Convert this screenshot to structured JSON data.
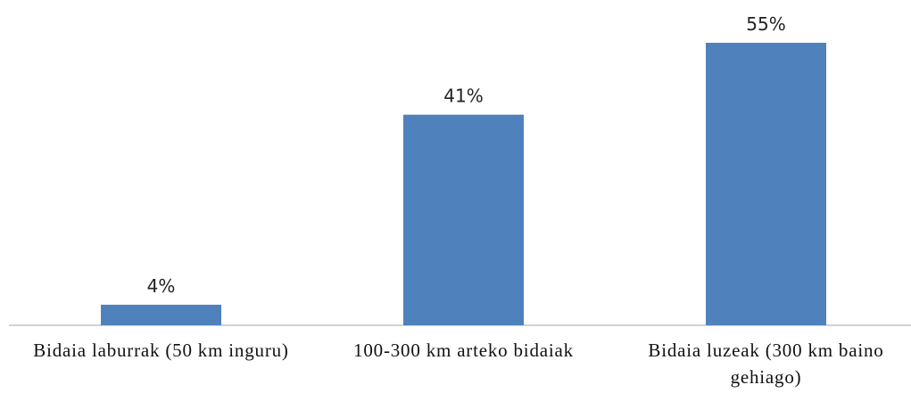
{
  "chart_data": {
    "type": "bar",
    "categories": [
      "Bidaia laburrak (50 km inguru)",
      "100-300 km arteko bidaiak",
      "Bidaia luzeak (300 km baino gehiago)"
    ],
    "values": [
      4,
      41,
      55
    ],
    "value_labels": [
      "4%",
      "41%",
      "55%"
    ],
    "color": "#4f81bd"
  }
}
